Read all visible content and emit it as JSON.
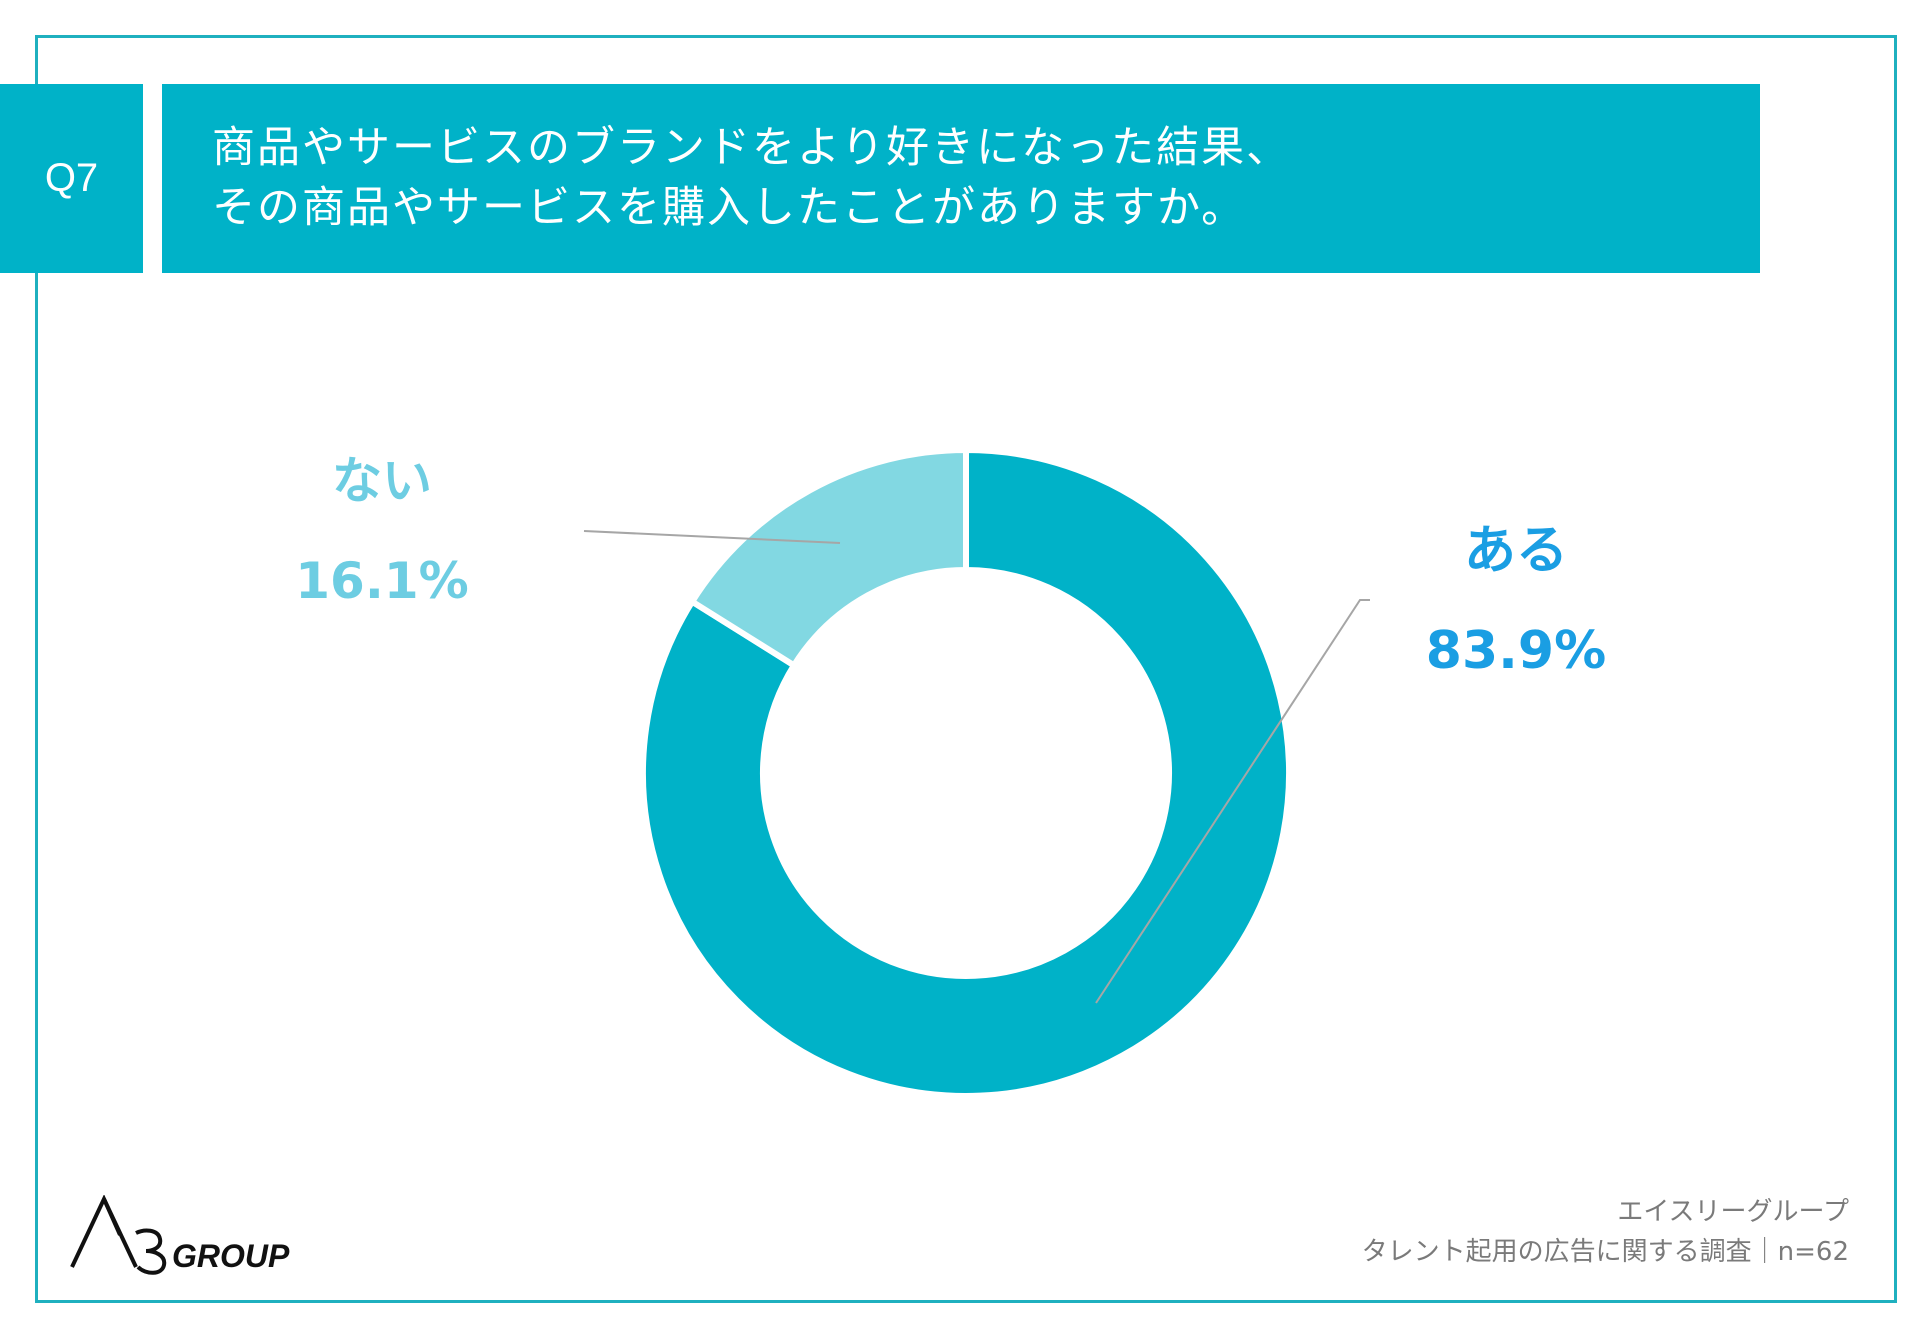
{
  "question": {
    "number": "Q7",
    "title_lines": [
      "商品やサービスのブランドをより好きになった結果、",
      "その商品やサービスを購入したことがありますか。"
    ]
  },
  "chart_data": {
    "type": "pie",
    "categories": [
      "ある",
      "ない"
    ],
    "values": [
      83.9,
      16.1
    ],
    "value_labels": [
      "83.9%",
      "16.1%"
    ],
    "colors": [
      "#00b2c8",
      "#82d8e2"
    ],
    "label_colors": [
      "#1a9ee3",
      "#6dcde2"
    ],
    "donut": true
  },
  "footer": {
    "line1": "エイスリーグループ",
    "line2": "タレント起用の広告に関する調査｜n=62"
  },
  "logo": {
    "text": "A3GROUP"
  },
  "colors": {
    "accent": "#00b2c8",
    "frame": "#1fb0bf",
    "leader_line": "#a6a6a6"
  }
}
